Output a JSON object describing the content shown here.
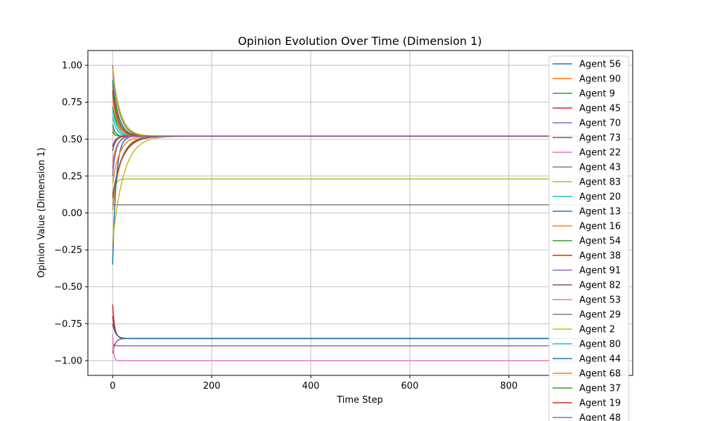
{
  "chart_data": {
    "type": "line",
    "title": "Opinion Evolution Over Time (Dimension 1)",
    "xlabel": "Time Step",
    "ylabel": "Opinion Value (Dimension 1)",
    "xlim": [
      -50,
      1050
    ],
    "ylim": [
      -1.1,
      1.1
    ],
    "grid": true,
    "legend_position": "upper-right",
    "x_ticks": [
      0,
      200,
      400,
      600,
      800
    ],
    "x_tick_labels": [
      "0",
      "200",
      "400",
      "600",
      "800"
    ],
    "y_ticks": [
      1.0,
      0.75,
      0.5,
      0.25,
      0.0,
      -0.25,
      -0.5,
      -0.75,
      -1.0
    ],
    "y_tick_labels": [
      "1.00",
      "0.75",
      "0.50",
      "0.25",
      "0.00",
      "−0.25",
      "−0.50",
      "−0.75",
      "−1.00"
    ],
    "time_steps": 1000,
    "series": [
      {
        "name": "Agent 56",
        "color": "#1f77b4",
        "start": 0.42,
        "final": 0.52,
        "tau": 6
      },
      {
        "name": "Agent 90",
        "color": "#ff7f0e",
        "start": 0.78,
        "final": 0.52,
        "tau": 10
      },
      {
        "name": "Agent 9",
        "color": "#2ca02c",
        "start": 0.87,
        "final": 0.52,
        "tau": 12
      },
      {
        "name": "Agent 45",
        "color": "#d62728",
        "start": 0.83,
        "final": 0.52,
        "tau": 11
      },
      {
        "name": "Agent 70",
        "color": "#9467bd",
        "start": 0.3,
        "final": 0.52,
        "tau": 8
      },
      {
        "name": "Agent 73",
        "color": "#8c564b",
        "start": 0.1,
        "final": 0.52,
        "tau": 18
      },
      {
        "name": "Agent 22",
        "color": "#e377c2",
        "start": 0.95,
        "final": 0.52,
        "tau": 14
      },
      {
        "name": "Agent 43",
        "color": "#7f7f7f",
        "start": 1.0,
        "final": 0.52,
        "tau": 13
      },
      {
        "name": "Agent 83",
        "color": "#bcbd22",
        "start": 0.98,
        "final": 0.52,
        "tau": 15
      },
      {
        "name": "Agent 20",
        "color": "#17becf",
        "start": 0.7,
        "final": 0.52,
        "tau": 9
      },
      {
        "name": "Agent 13",
        "color": "#1f77b4",
        "start": -0.35,
        "final": 0.52,
        "tau": 7
      },
      {
        "name": "Agent 16",
        "color": "#ff7f0e",
        "start": 0.2,
        "final": 0.52,
        "tau": 14
      },
      {
        "name": "Agent 54",
        "color": "#2ca02c",
        "start": 0.6,
        "final": 0.52,
        "tau": 5
      },
      {
        "name": "Agent 38",
        "color": "#d62728",
        "start": -0.62,
        "final": -0.85,
        "tau": 4
      },
      {
        "name": "Agent 91",
        "color": "#9467bd",
        "start": -0.88,
        "final": -0.9,
        "tau": 3
      },
      {
        "name": "Agent 82",
        "color": "#8c564b",
        "start": -0.95,
        "final": -0.85,
        "tau": 5
      },
      {
        "name": "Agent 53",
        "color": "#e377c2",
        "start": -0.82,
        "final": -1.0,
        "tau": 2
      },
      {
        "name": "Agent 29",
        "color": "#7f7f7f",
        "start": 0.06,
        "final": 0.055,
        "tau": 1
      },
      {
        "name": "Agent 2",
        "color": "#bcbd22",
        "start": -0.2,
        "final": 0.52,
        "tau": 22
      },
      {
        "name": "Agent 80",
        "color": "#17becf",
        "start": 0.65,
        "final": 0.52,
        "tau": 8
      },
      {
        "name": "Agent 44",
        "color": "#1f77b4",
        "start": -0.75,
        "final": -0.85,
        "tau": 6
      },
      {
        "name": "Agent 68",
        "color": "#ff7f0e",
        "start": 0.35,
        "final": 0.52,
        "tau": 9
      },
      {
        "name": "Agent 37",
        "color": "#2ca02c",
        "start": 0.55,
        "final": 0.52,
        "tau": 4
      },
      {
        "name": "Agent 19",
        "color": "#d62728",
        "start": 0.45,
        "final": 0.52,
        "tau": 6
      },
      {
        "name": "Agent 48",
        "color": "#9467bd",
        "start": 0.25,
        "final": 0.52,
        "tau": 7
      }
    ],
    "extra_series": [
      {
        "color": "#bcbd22",
        "start": 0.05,
        "final": 0.23,
        "tau": 4
      },
      {
        "color": "#8c564b",
        "start": 0.12,
        "final": 0.52,
        "tau": 20
      },
      {
        "color": "#ff7f0e",
        "start": 0.02,
        "final": 0.52,
        "tau": 16
      },
      {
        "color": "#2ca02c",
        "start": 0.72,
        "final": 0.52,
        "tau": 11
      },
      {
        "color": "#1f77b4",
        "start": 0.9,
        "final": 0.52,
        "tau": 12
      },
      {
        "color": "#17becf",
        "start": 0.8,
        "final": 0.52,
        "tau": 10
      },
      {
        "color": "#d62728",
        "start": -0.7,
        "final": -0.85,
        "tau": 5
      },
      {
        "color": "#e377c2",
        "start": 0.58,
        "final": 0.52,
        "tau": 3
      }
    ]
  }
}
